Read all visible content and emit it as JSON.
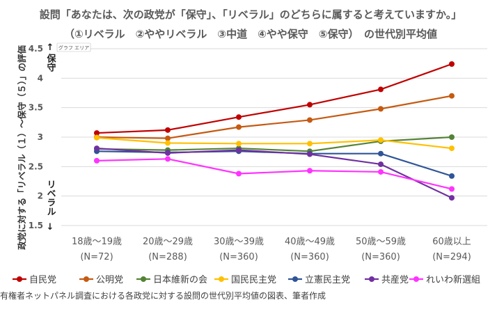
{
  "chart_data": {
    "type": "line",
    "title_line1": "設問「あなたは、次の政党が「保守」、「リベラル」のどちらに属すると考えていますか。」",
    "title_line2": "（①リベラル　②ややリベラル　③中道　④やや保守　⑤保守）　の世代別平均値",
    "ylabel": "政党に対する「リベラル（１）〜保守（５）」の評価",
    "y_top_marker": "↑",
    "y_top_label": "保守",
    "y_bottom_label": "リベラル",
    "y_bottom_marker": "↓",
    "area_badge": "グラフ エリア",
    "ylim": [
      1.5,
      4.5
    ],
    "yticks": [
      "1.5",
      "2",
      "2.5",
      "3",
      "3.5",
      "4",
      "4.5"
    ],
    "grid": true,
    "legend_position": "bottom",
    "categories": [
      {
        "label": "18歳〜19歳",
        "n": "(N=72)"
      },
      {
        "label": "20歳〜29歳",
        "n": "(N=288)"
      },
      {
        "label": "30歳〜39歳",
        "n": "(N=360)"
      },
      {
        "label": "40歳〜49歳",
        "n": "(N=360)"
      },
      {
        "label": "50歳〜59歳",
        "n": "(N=360)"
      },
      {
        "label": "60歳以上",
        "n": "(N=294)"
      }
    ],
    "series": [
      {
        "name": "自民党",
        "color": "#c00000",
        "values": [
          3.07,
          3.12,
          3.34,
          3.55,
          3.81,
          4.24
        ]
      },
      {
        "name": "公明党",
        "color": "#c55a11",
        "values": [
          3.0,
          2.98,
          3.17,
          3.29,
          3.48,
          3.7
        ]
      },
      {
        "name": "日本維新の会",
        "color": "#548235",
        "values": [
          2.8,
          2.78,
          2.81,
          2.76,
          2.93,
          3.0
        ]
      },
      {
        "name": "国民民主党",
        "color": "#ffc000",
        "values": [
          2.99,
          2.9,
          2.89,
          2.89,
          2.95,
          2.81
        ]
      },
      {
        "name": "立憲民主党",
        "color": "#2f5597",
        "values": [
          2.76,
          2.74,
          2.76,
          2.72,
          2.72,
          2.34
        ]
      },
      {
        "name": "共産党",
        "color": "#7030a0",
        "values": [
          2.81,
          2.73,
          2.78,
          2.71,
          2.54,
          1.97
        ]
      },
      {
        "name": "れいわ新選組",
        "color": "#ff33ff",
        "values": [
          2.6,
          2.63,
          2.38,
          2.43,
          2.41,
          2.12
        ]
      }
    ]
  },
  "caption": "有権者ネットパネル調査における各政党に対する設問の世代別平均値の図表、筆者作成"
}
